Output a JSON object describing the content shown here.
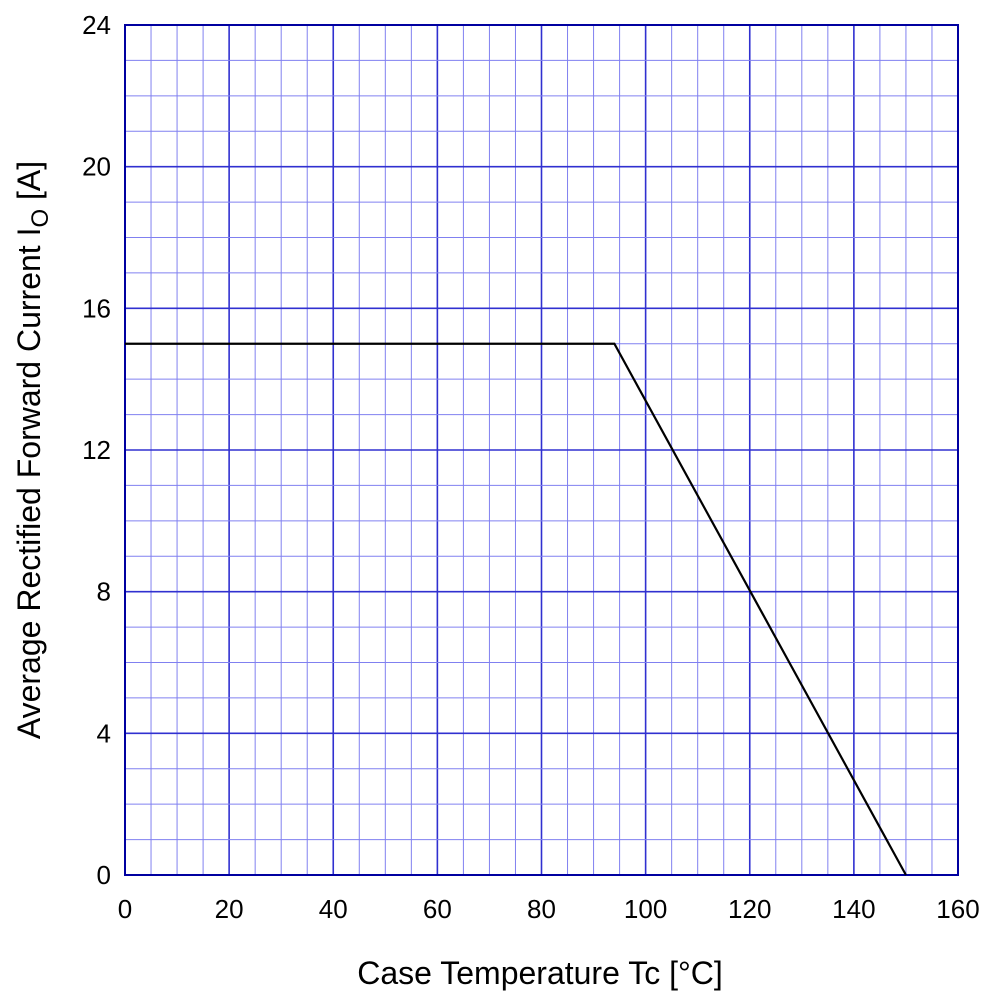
{
  "chart_data": {
    "type": "line",
    "xlabel": "Case Temperature  Tc  [°C]",
    "ylabel": {
      "main": "Average Rectified Forward Current  I",
      "subscript": "O",
      "unit": " [A]"
    },
    "xlim": [
      0,
      160
    ],
    "ylim": [
      0,
      24
    ],
    "x_ticks": [
      0,
      20,
      40,
      60,
      80,
      100,
      120,
      140,
      160
    ],
    "y_ticks": [
      0,
      4,
      8,
      12,
      16,
      20,
      24
    ],
    "x_minor_step": 5,
    "y_minor_step": 1,
    "grid": true,
    "series": [
      {
        "x": [
          0,
          94,
          150
        ],
        "y": [
          15,
          15,
          0
        ]
      }
    ]
  },
  "colors": {
    "grid": "#8080f0",
    "grid_major": "#3030d0",
    "frame": "#0000a0",
    "line": "#000000",
    "text": "#000000"
  }
}
